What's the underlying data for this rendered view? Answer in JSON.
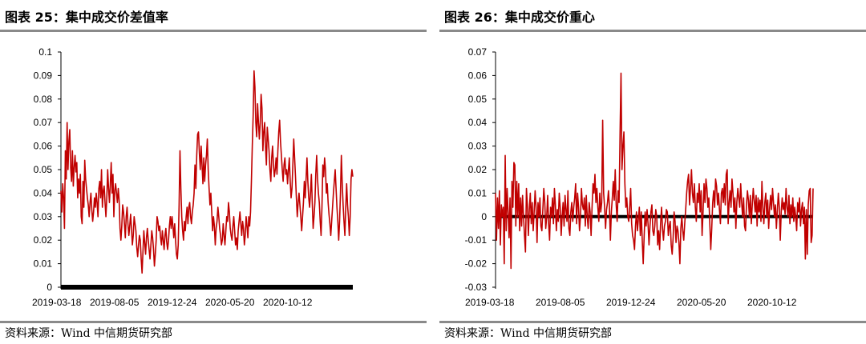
{
  "colors": {
    "series": "#c00000",
    "zero_line": "#000000",
    "axis": "#000000",
    "rule": "#8a8a8a"
  },
  "figures": [
    {
      "title": "图表 25：集中成交价差值率",
      "source": "资料来源：Wind  中信期货研究部"
    },
    {
      "title": "图表 26：集中成交价重心",
      "source": "资料来源：Wind  中信期货研究部"
    }
  ],
  "chart_data": [
    {
      "type": "line",
      "title": "",
      "xlabel": "",
      "ylabel": "",
      "ylim": [
        0,
        0.1
      ],
      "yticks": [
        "0",
        "0.01",
        "0.02",
        "0.03",
        "0.04",
        "0.05",
        "0.06",
        "0.07",
        "0.08",
        "0.09",
        "0.1"
      ],
      "xticks": [
        "2019-03-18",
        "2019-08-05",
        "2019-12-24",
        "2020-05-20",
        "2020-10-12"
      ],
      "baseline": 0,
      "grid": false,
      "legend": "none",
      "series": [
        {
          "values": [
            0.041,
            0.032,
            0.044,
            0.038,
            0.025,
            0.058,
            0.046,
            0.07,
            0.05,
            0.062,
            0.067,
            0.051,
            0.045,
            0.058,
            0.043,
            0.051,
            0.056,
            0.049,
            0.053,
            0.038,
            0.046,
            0.04,
            0.048,
            0.03,
            0.027,
            0.045,
            0.034,
            0.054,
            0.046,
            0.042,
            0.038,
            0.035,
            0.03,
            0.036,
            0.04,
            0.033,
            0.028,
            0.032,
            0.038,
            0.034,
            0.04,
            0.036,
            0.03,
            0.042,
            0.045,
            0.038,
            0.05,
            0.034,
            0.041,
            0.043,
            0.036,
            0.03,
            0.038,
            0.05,
            0.042,
            0.036,
            0.044,
            0.053,
            0.04,
            0.048,
            0.03,
            0.041,
            0.044,
            0.04,
            0.036,
            0.042,
            0.037,
            0.025,
            0.02,
            0.026,
            0.035,
            0.032,
            0.027,
            0.021,
            0.03,
            0.034,
            0.027,
            0.022,
            0.026,
            0.031,
            0.025,
            0.018,
            0.022,
            0.03,
            0.027,
            0.024,
            0.017,
            0.013,
            0.018,
            0.022,
            0.02,
            0.012,
            0.006,
            0.015,
            0.024,
            0.019,
            0.014,
            0.021,
            0.025,
            0.02,
            0.016,
            0.012,
            0.018,
            0.024,
            0.021,
            0.016,
            0.009,
            0.014,
            0.02,
            0.03,
            0.028,
            0.024,
            0.026,
            0.021,
            0.018,
            0.024,
            0.02,
            0.016,
            0.022,
            0.025,
            0.019,
            0.016,
            0.02,
            0.026,
            0.03,
            0.025,
            0.03,
            0.026,
            0.021,
            0.027,
            0.02,
            0.014,
            0.012,
            0.018,
            0.035,
            0.058,
            0.042,
            0.03,
            0.024,
            0.02,
            0.028,
            0.024,
            0.03,
            0.034,
            0.027,
            0.034,
            0.036,
            0.03,
            0.027,
            0.032,
            0.035,
            0.04,
            0.052,
            0.042,
            0.056,
            0.065,
            0.066,
            0.057,
            0.05,
            0.06,
            0.052,
            0.044,
            0.055,
            0.045,
            0.052,
            0.056,
            0.063,
            0.05,
            0.042,
            0.035,
            0.04,
            0.032,
            0.024,
            0.03,
            0.026,
            0.018,
            0.025,
            0.028,
            0.034,
            0.03,
            0.025,
            0.022,
            0.018,
            0.02,
            0.027,
            0.022,
            0.018,
            0.024,
            0.03,
            0.028,
            0.036,
            0.032,
            0.025,
            0.022,
            0.02,
            0.026,
            0.03,
            0.024,
            0.018,
            0.021,
            0.016,
            0.024,
            0.028,
            0.032,
            0.027,
            0.022,
            0.028,
            0.025,
            0.018,
            0.022,
            0.03,
            0.026,
            0.021,
            0.03,
            0.026,
            0.032,
            0.045,
            0.06,
            0.073,
            0.092,
            0.085,
            0.07,
            0.064,
            0.078,
            0.07,
            0.063,
            0.07,
            0.082,
            0.076,
            0.058,
            0.066,
            0.07,
            0.06,
            0.052,
            0.068,
            0.063,
            0.058,
            0.05,
            0.045,
            0.055,
            0.06,
            0.052,
            0.047,
            0.05,
            0.055,
            0.048,
            0.058,
            0.066,
            0.071,
            0.062,
            0.056,
            0.05,
            0.045,
            0.052,
            0.055,
            0.048,
            0.05,
            0.044,
            0.05,
            0.055,
            0.045,
            0.038,
            0.042,
            0.052,
            0.063,
            0.055,
            0.047,
            0.038,
            0.03,
            0.036,
            0.04,
            0.035,
            0.03,
            0.024,
            0.03,
            0.036,
            0.045,
            0.038,
            0.046,
            0.055,
            0.045,
            0.038,
            0.034,
            0.04,
            0.048,
            0.036,
            0.025,
            0.03,
            0.036,
            0.048,
            0.056,
            0.046,
            0.04,
            0.036,
            0.028,
            0.022,
            0.034,
            0.052,
            0.047,
            0.055,
            0.05,
            0.04,
            0.044,
            0.036,
            0.031,
            0.027,
            0.022,
            0.028,
            0.034,
            0.04,
            0.045,
            0.05,
            0.042,
            0.034,
            0.028,
            0.02,
            0.028,
            0.04,
            0.056,
            0.044,
            0.035,
            0.028,
            0.022,
            0.034,
            0.044,
            0.035,
            0.03,
            0.022,
            0.03,
            0.046,
            0.05,
            0.047
          ]
        }
      ]
    },
    {
      "type": "line",
      "title": "",
      "xlabel": "",
      "ylabel": "",
      "ylim": [
        -0.03,
        0.07
      ],
      "yticks": [
        "-0.03",
        "-0.02",
        "-0.01",
        "0",
        "0.01",
        "0.02",
        "0.03",
        "0.04",
        "0.05",
        "0.06",
        "0.07"
      ],
      "xticks": [
        "2019-03-18",
        "2019-08-05",
        "2019-12-24",
        "2020-05-20",
        "2020-10-12"
      ],
      "baseline": 0,
      "grid": false,
      "legend": "none",
      "series": [
        {
          "values": [
            0.01,
            -0.01,
            0.008,
            -0.005,
            0.011,
            -0.012,
            0.005,
            0.0,
            0.004,
            -0.02,
            0.026,
            -0.006,
            0.012,
            0.002,
            -0.009,
            0.008,
            -0.022,
            0.015,
            0.004,
            0.023,
            0.022,
            -0.004,
            0.015,
            0.0,
            0.014,
            -0.006,
            0.008,
            -0.004,
            0.009,
            0.0,
            -0.008,
            -0.015,
            0.012,
            0.005,
            -0.008,
            0.003,
            0.01,
            -0.003,
            0.006,
            -0.006,
            0.002,
            0.011,
            0.004,
            -0.011,
            0.006,
            0.0,
            0.008,
            -0.004,
            -0.006,
            0.003,
            0.012,
            0.006,
            -0.005,
            0.0,
            0.009,
            -0.003,
            -0.01,
            0.004,
            0.0,
            0.008,
            -0.003,
            0.012,
            0.005,
            -0.006,
            0.003,
            -0.002,
            0.01,
            0.004,
            -0.008,
            0.0,
            0.006,
            -0.004,
            0.009,
            0.003,
            -0.002,
            0.011,
            -0.005,
            -0.008,
            0.002,
            0.006,
            -0.002,
            0.004,
            0.008,
            0.014,
            -0.003,
            0.01,
            0.004,
            -0.006,
            0.0,
            0.012,
            0.005,
            0.003,
            0.008,
            -0.004,
            0.009,
            0.0,
            -0.005,
            0.006,
            0.002,
            -0.008,
            0.004,
            0.014,
            0.01,
            0.018,
            0.006,
            0.012,
            0.004,
            -0.002,
            0.01,
            0.002,
            0.006,
            0.041,
            0.01,
            0.004,
            -0.005,
            0.003,
            0.006,
            0.011,
            0.004,
            -0.01,
            0.002,
            0.008,
            0.015,
            0.007,
            0.02,
            0.005,
            -0.002,
            0.011,
            0.006,
            0.035,
            0.061,
            0.02,
            0.03,
            0.036,
            0.014,
            0.004,
            0.008,
            0.0,
            -0.002,
            0.004,
            0.012,
            -0.003,
            -0.008,
            -0.01,
            -0.014,
            -0.004,
            0.002,
            -0.006,
            -0.001,
            0.004,
            -0.008,
            0.002,
            -0.01,
            -0.02,
            -0.008,
            0.002,
            -0.004,
            0.003,
            -0.003,
            -0.012,
            -0.004,
            0.002,
            0.005,
            -0.006,
            -0.008,
            -0.004,
            0.003,
            0.0,
            -0.012,
            -0.006,
            -0.014,
            -0.003,
            0.004,
            -0.005,
            -0.01,
            -0.004,
            -0.002,
            0.003,
            0.002,
            -0.008,
            -0.004,
            -0.002,
            -0.012,
            -0.016,
            -0.009,
            0.002,
            -0.002,
            -0.011,
            -0.004,
            -0.006,
            -0.011,
            -0.02,
            -0.005,
            0.0,
            -0.006,
            -0.01,
            -0.003,
            0.003,
            0.01,
            0.015,
            0.018,
            0.005,
            0.012,
            0.02,
            0.01,
            0.006,
            0.014,
            0.004,
            -0.002,
            0.01,
            0.006,
            0.014,
            0.002,
            0.011,
            -0.008,
            0.002,
            0.014,
            0.006,
            0.016,
            0.012,
            0.004,
            0.008,
            -0.003,
            -0.014,
            -0.005,
            0.006,
            0.011,
            0.004,
            0.016,
            0.013,
            0.005,
            0.01,
            0.003,
            -0.003,
            0.01,
            0.012,
            0.006,
            0.014,
            0.005,
            0.018,
            0.02,
            -0.003,
            0.006,
            0.011,
            0.004,
            0.016,
            0.01,
            0.002,
            0.008,
            -0.005,
            0.006,
            0.012,
            0.008,
            0.004,
            0.014,
            0.006,
            0.0,
            0.008,
            -0.004,
            -0.006,
            0.005,
            0.011,
            0.007,
            0.0,
            0.009,
            -0.003,
            0.005,
            0.012,
            0.007,
            0.002,
            0.009,
            -0.004,
            0.008,
            0.002,
            0.007,
            -0.002,
            0.015,
            0.004,
            -0.003,
            0.006,
            0.01,
            0.0,
            0.007,
            -0.005,
            0.004,
            0.009,
            0.003,
            0.012,
            0.006,
            0.0,
            0.005,
            -0.005,
            0.003,
            0.01,
            0.004,
            -0.01,
            0.002,
            0.008,
            0.003,
            0.006,
            0.001,
            0.012,
            0.004,
            0.0,
            0.009,
            -0.003,
            0.005,
            0.0,
            0.008,
            -0.002,
            0.004,
            0.0,
            -0.006,
            0.006,
            0.002,
            0.008,
            -0.004,
            0.003,
            0.006,
            -0.003,
            0.004,
            -0.018,
            0.003,
            -0.016,
            0.005,
            0.011,
            0.012,
            -0.011,
            -0.008,
            0.012
          ]
        }
      ]
    }
  ]
}
